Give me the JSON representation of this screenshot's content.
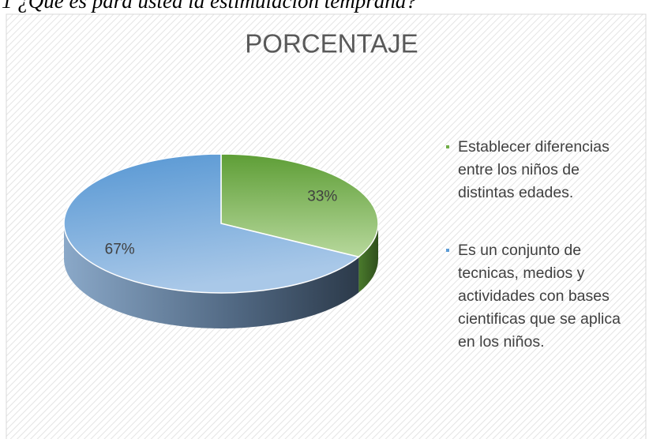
{
  "heading": "1 ¿Qué es para usted la estimulación temprana?",
  "chart_data": {
    "type": "pie",
    "title": "PORCENTAJE",
    "categories": [
      "Establecer diferencias entre los niños de distintas edades.",
      "Es un conjunto de tecnicas, medios y actividades con bases cientificas que se aplica en los niños."
    ],
    "values": [
      33,
      67
    ],
    "value_labels": [
      "33%",
      "67%"
    ],
    "colors": [
      "#70ad47",
      "#5b9bd5"
    ],
    "legend": "right"
  }
}
